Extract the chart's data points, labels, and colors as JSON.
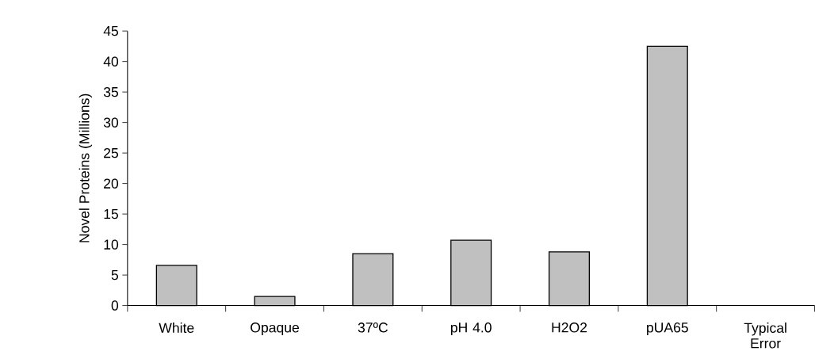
{
  "chart_data": {
    "type": "bar",
    "ylabel": "Novel Proteins (Millions)",
    "categories": [
      "White",
      "Opaque",
      "37ºC",
      "pH 4.0",
      "H2O2",
      "pUA65",
      "Typical Error"
    ],
    "values": [
      6.6,
      1.5,
      8.5,
      10.7,
      8.8,
      42.5,
      null
    ],
    "color": "#c0c0c0",
    "ylim": [
      0,
      45
    ],
    "yticks": [
      0,
      5,
      10,
      15,
      20,
      25,
      30,
      35,
      40,
      45
    ]
  }
}
